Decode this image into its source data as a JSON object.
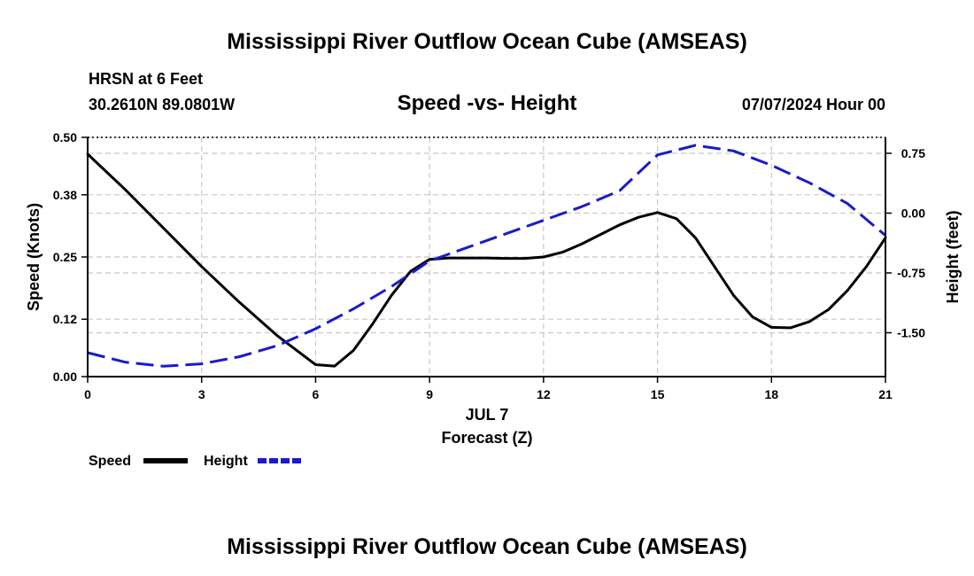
{
  "header": {
    "title": "Mississippi River Outflow Ocean Cube (AMSEAS)",
    "station": "HRSN at 6 Feet",
    "coords": "30.2610N  89.0801W",
    "chart_title": "Speed -vs- Height",
    "timestamp": "07/07/2024 Hour 00"
  },
  "footer": {
    "title": "Mississippi River Outflow Ocean Cube (AMSEAS)"
  },
  "chart_data": {
    "type": "line",
    "title": "Speed -vs- Height",
    "xlabel_date": "JUL 7",
    "xlabel": "Forecast (Z)",
    "ylabel_left": "Speed (Knots)",
    "ylabel_right": "Height (feet)",
    "xlim": [
      0,
      21
    ],
    "ylim_left": [
      0,
      0.5
    ],
    "ylim_right": [
      -2.05,
      0.95
    ],
    "x_ticks": [
      "0",
      "3",
      "6",
      "9",
      "12",
      "15",
      "18",
      "21"
    ],
    "y_left_ticks": [
      "0.00",
      "0.12",
      "0.25",
      "0.38",
      "0.50"
    ],
    "y_right_ticks": [
      "-1.50",
      "-0.75",
      "0.00",
      "0.75"
    ],
    "grid": true,
    "legend_position": "bottom-left",
    "series": [
      {
        "name": "Speed",
        "axis": "left",
        "color": "#000000",
        "style": "solid",
        "x": [
          0,
          1,
          2,
          3,
          4,
          5,
          6,
          6.5,
          7,
          7.5,
          8,
          8.5,
          9,
          9.5,
          10,
          10.5,
          11,
          11.5,
          12,
          12.5,
          13,
          13.5,
          14,
          14.5,
          15,
          15.5,
          16,
          16.5,
          17,
          17.5,
          18,
          18.5,
          19,
          19.5,
          20,
          20.5,
          21
        ],
        "values": [
          0.465,
          0.39,
          0.31,
          0.23,
          0.155,
          0.085,
          0.025,
          0.022,
          0.055,
          0.11,
          0.17,
          0.22,
          0.245,
          0.248,
          0.248,
          0.248,
          0.247,
          0.247,
          0.25,
          0.26,
          0.277,
          0.297,
          0.317,
          0.333,
          0.343,
          0.33,
          0.29,
          0.23,
          0.17,
          0.125,
          0.103,
          0.102,
          0.115,
          0.14,
          0.18,
          0.23,
          0.29
        ]
      },
      {
        "name": "Height",
        "axis": "right",
        "color": "#1a1acc",
        "style": "dashed",
        "x": [
          0,
          1,
          2,
          3,
          4,
          5,
          6,
          7,
          8,
          9,
          10,
          11,
          12,
          13,
          14,
          15,
          16,
          17,
          18,
          19,
          20,
          21
        ],
        "values": [
          -1.75,
          -1.87,
          -1.92,
          -1.89,
          -1.8,
          -1.66,
          -1.45,
          -1.2,
          -0.92,
          -0.6,
          -0.43,
          -0.26,
          -0.09,
          0.08,
          0.28,
          0.73,
          0.85,
          0.78,
          0.6,
          0.38,
          0.12,
          -0.28
        ]
      }
    ]
  }
}
